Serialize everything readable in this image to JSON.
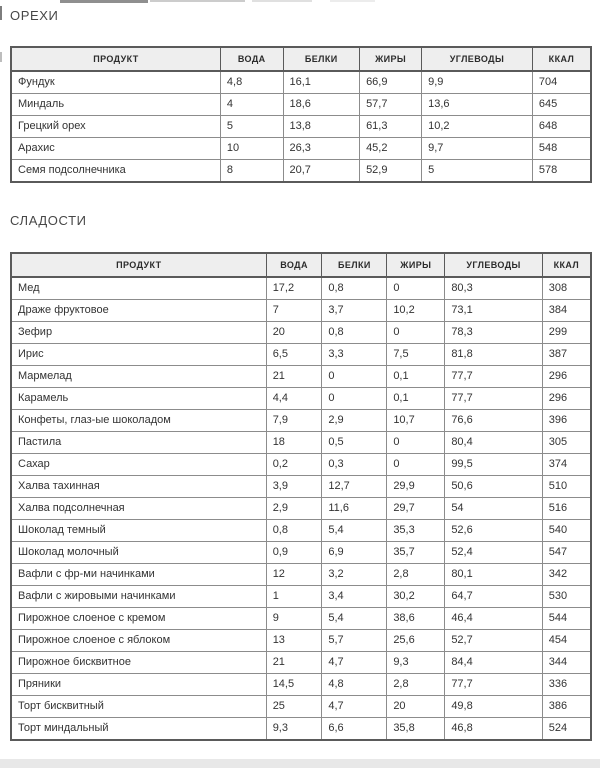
{
  "colors": {
    "header_bg": "#eeeeee",
    "border_outer": "#5a5a5a",
    "border_inner": "#8c8c8c",
    "text": "#333333",
    "heading": "#474747"
  },
  "sections": [
    {
      "title": "ОРЕХИ",
      "columns": [
        "ПРОДУКТ",
        "ВОДА",
        "БЕЛКИ",
        "ЖИРЫ",
        "УГЛЕВОДЫ",
        "ККАЛ"
      ],
      "col_widths": [
        "36.1%",
        "10.8%",
        "13.2%",
        "10.7%",
        "19.1%",
        "10.1%"
      ],
      "rows": [
        [
          "Фундук",
          "4,8",
          "16,1",
          "66,9",
          "9,9",
          "704"
        ],
        [
          "Миндаль",
          "4",
          "18,6",
          "57,7",
          "13,6",
          "645"
        ],
        [
          "Грецкий орех",
          "5",
          "13,8",
          "61,3",
          "10,2",
          "648"
        ],
        [
          "Арахис",
          "10",
          "26,3",
          "45,2",
          "9,7",
          "548"
        ],
        [
          "Семя подсолнечника",
          "8",
          "20,7",
          "52,9",
          "5",
          "578"
        ]
      ]
    },
    {
      "title": "СЛАДОСТИ",
      "columns": [
        "ПРОДУКТ",
        "ВОДА",
        "БЕЛКИ",
        "ЖИРЫ",
        "УГЛЕВОДЫ",
        "ККАЛ"
      ],
      "col_widths": [
        "44.0%",
        "9.6%",
        "11.2%",
        "10.0%",
        "16.8%",
        "8.4%"
      ],
      "rows": [
        [
          "Мед",
          "17,2",
          "0,8",
          "0",
          "80,3",
          "308"
        ],
        [
          "Драже фруктовое",
          "7",
          "3,7",
          "10,2",
          "73,1",
          "384"
        ],
        [
          "Зефир",
          "20",
          "0,8",
          "0",
          "78,3",
          "299"
        ],
        [
          "Ирис",
          "6,5",
          "3,3",
          "7,5",
          "81,8",
          "387"
        ],
        [
          "Мармелад",
          "21",
          "0",
          "0,1",
          "77,7",
          "296"
        ],
        [
          "Карамель",
          "4,4",
          "0",
          "0,1",
          "77,7",
          "296"
        ],
        [
          "Конфеты, глаз-ые шоколадом",
          "7,9",
          "2,9",
          "10,7",
          "76,6",
          "396"
        ],
        [
          "Пастила",
          "18",
          "0,5",
          "0",
          "80,4",
          "305"
        ],
        [
          "Сахар",
          "0,2",
          "0,3",
          "0",
          "99,5",
          "374"
        ],
        [
          "Халва тахинная",
          "3,9",
          "12,7",
          "29,9",
          "50,6",
          "510"
        ],
        [
          "Халва подсолнечная",
          "2,9",
          "11,6",
          "29,7",
          "54",
          "516"
        ],
        [
          "Шоколад темный",
          "0,8",
          "5,4",
          "35,3",
          "52,6",
          "540"
        ],
        [
          "Шоколад молочный",
          "0,9",
          "6,9",
          "35,7",
          "52,4",
          "547"
        ],
        [
          "Вафли с фр-ми начинками",
          "12",
          "3,2",
          "2,8",
          "80,1",
          "342"
        ],
        [
          "Вафли с жировыми начинками",
          "1",
          "3,4",
          "30,2",
          "64,7",
          "530"
        ],
        [
          "Пирожное слоеное с кремом",
          "9",
          "5,4",
          "38,6",
          "46,4",
          "544"
        ],
        [
          "Пирожное слоеное с яблоком",
          "13",
          "5,7",
          "25,6",
          "52,7",
          "454"
        ],
        [
          "Пирожное бисквитное",
          "21",
          "4,7",
          "9,3",
          "84,4",
          "344"
        ],
        [
          "Пряники",
          "14,5",
          "4,8",
          "2,8",
          "77,7",
          "336"
        ],
        [
          "Торт бисквитный",
          "25",
          "4,7",
          "20",
          "49,8",
          "386"
        ],
        [
          "Торт миндальный",
          "9,3",
          "6,6",
          "35,8",
          "46,8",
          "524"
        ]
      ]
    }
  ]
}
